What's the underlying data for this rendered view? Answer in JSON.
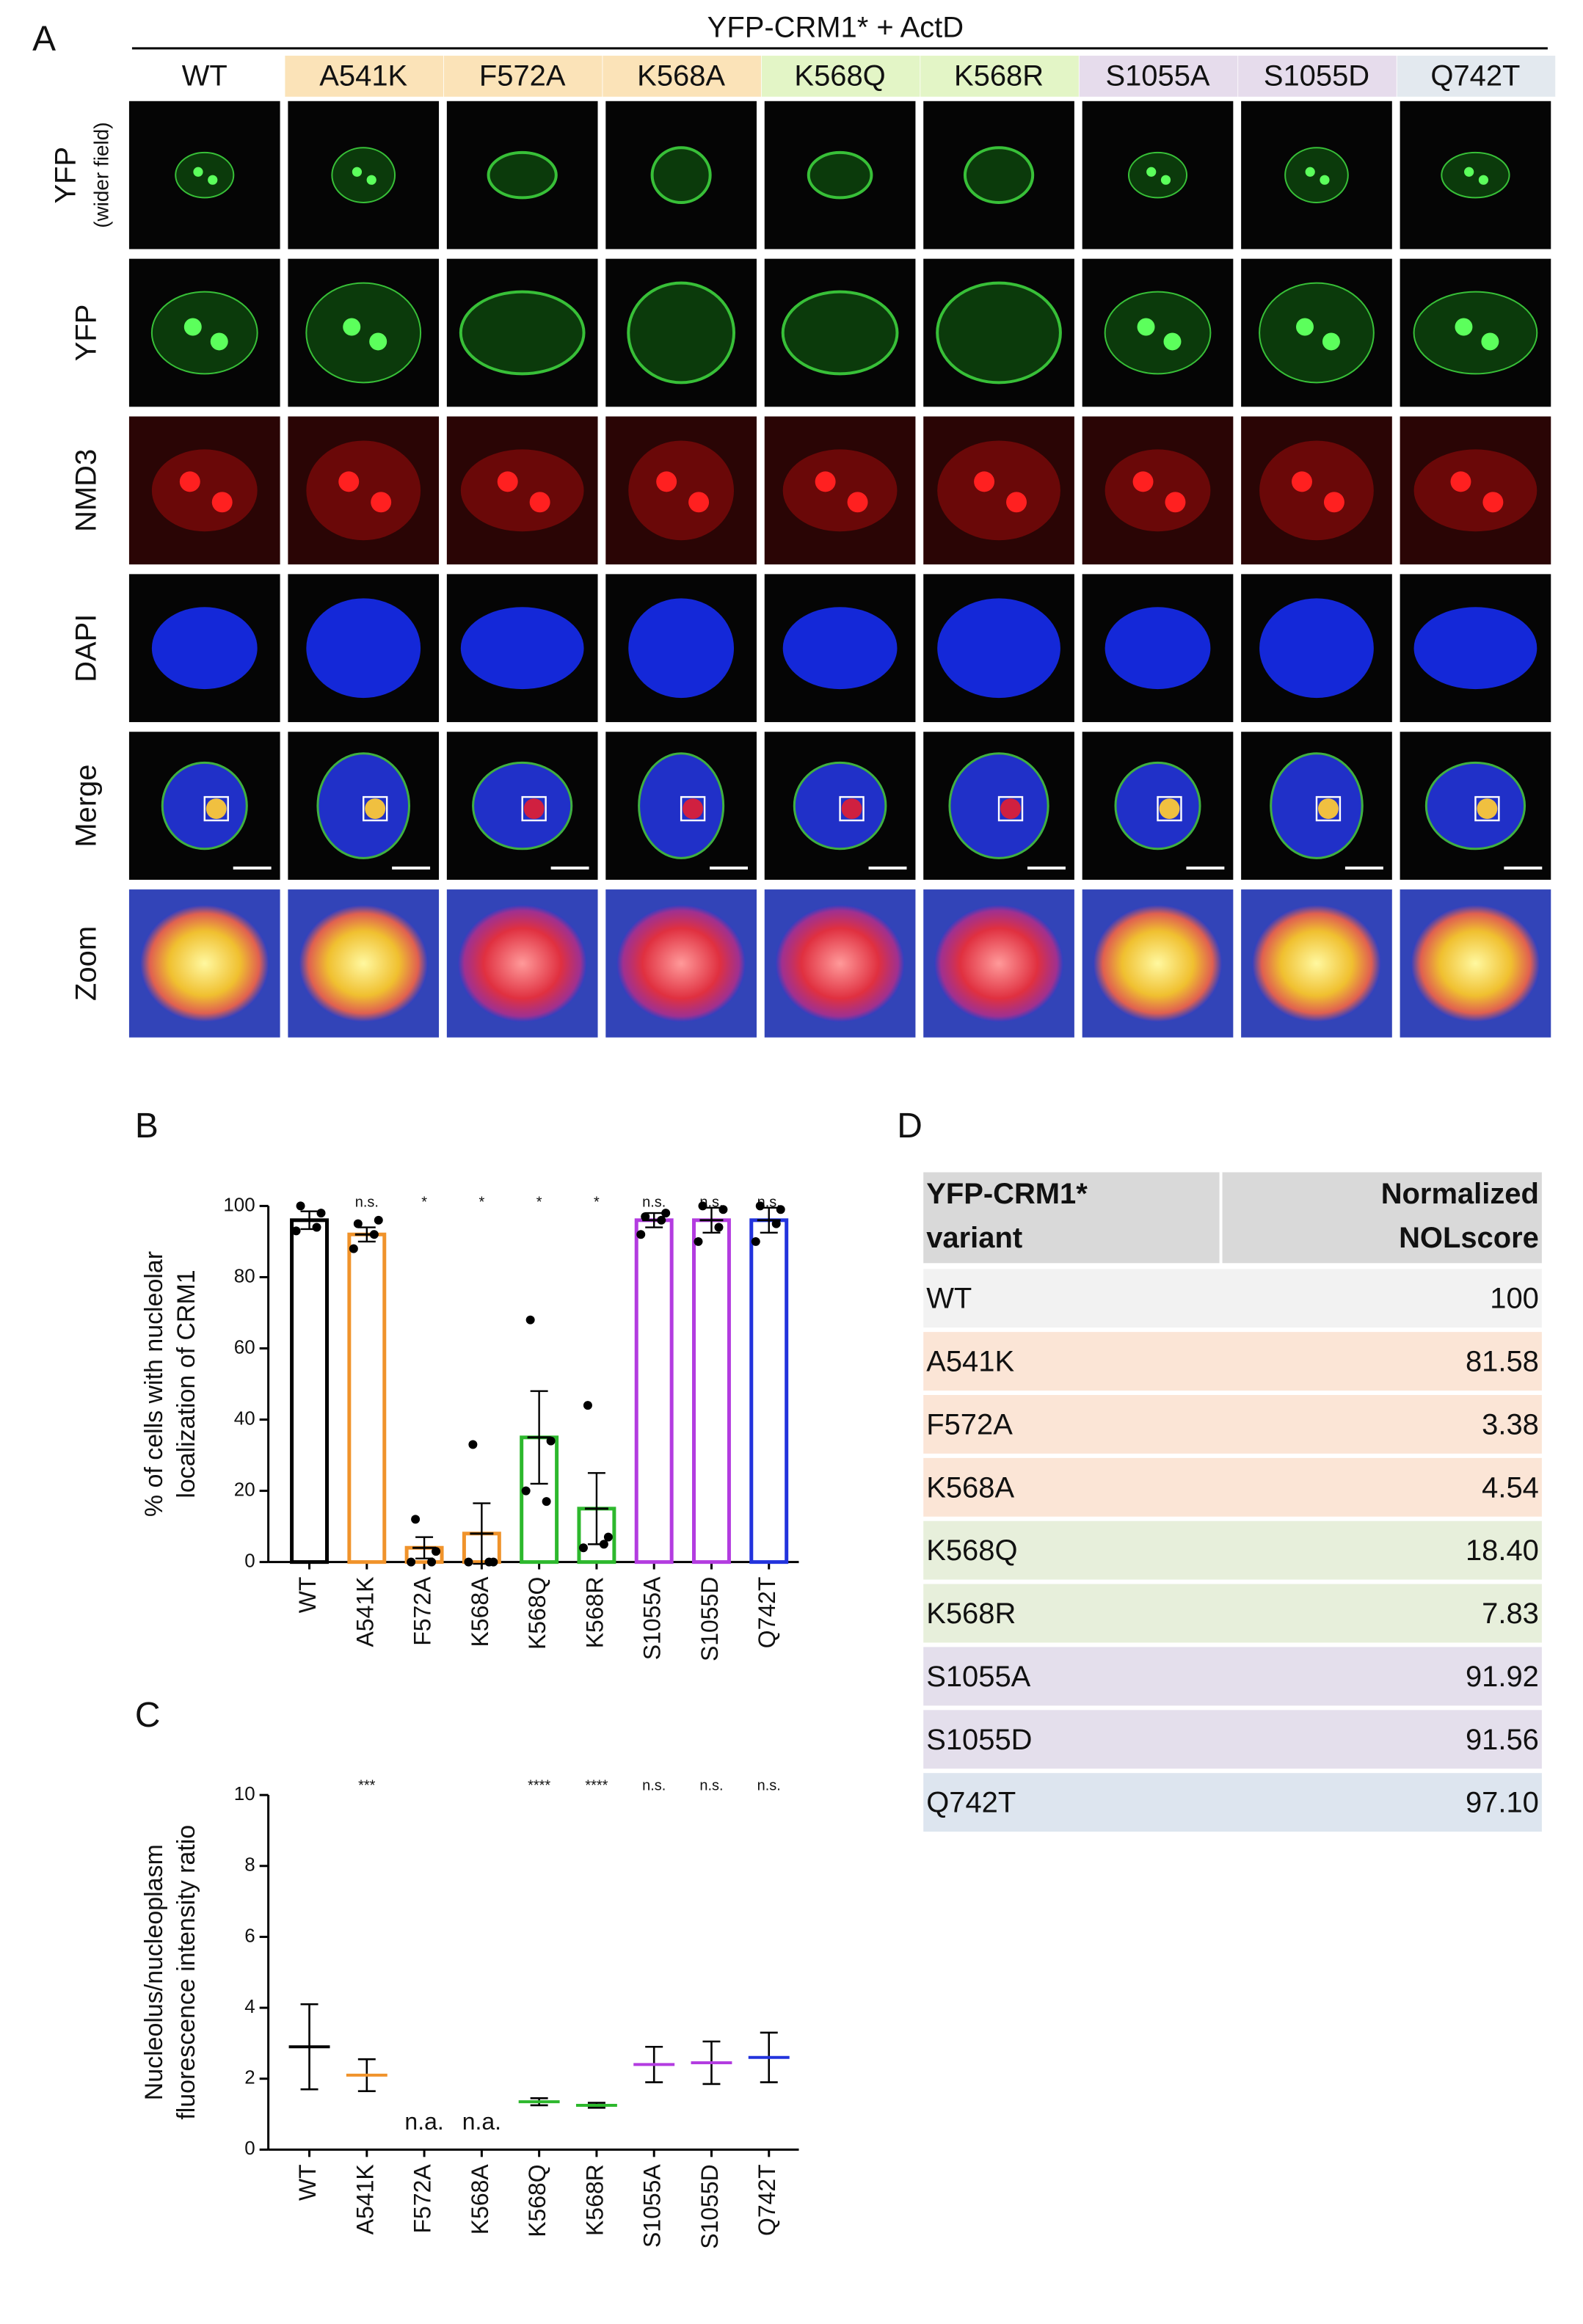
{
  "panel_a": {
    "panel_label": "A",
    "title": "YFP-CRM1* + ActD",
    "columns": [
      {
        "name": "WT",
        "color": "#ffffff"
      },
      {
        "name": "A541K",
        "color": "#fbe3b8"
      },
      {
        "name": "F572A",
        "color": "#fbe3b8"
      },
      {
        "name": "K568A",
        "color": "#fbe3b8"
      },
      {
        "name": "K568Q",
        "color": "#e3f5c6"
      },
      {
        "name": "K568R",
        "color": "#e3f5c6"
      },
      {
        "name": "S1055A",
        "color": "#e6dcec"
      },
      {
        "name": "S1055D",
        "color": "#e6dcec"
      },
      {
        "name": "Q742T",
        "color": "#e3e9ef"
      }
    ],
    "rows": [
      "YFP",
      "YFP",
      "NMD3",
      "DAPI",
      "Merge",
      "Zoom"
    ],
    "row_note": "(wider field)"
  },
  "chart_data": [
    {
      "type": "bar",
      "panel_label": "B",
      "ylabel": [
        "% of cells with nucleolar",
        "localization of CRM1"
      ],
      "categories": [
        "WT",
        "A541K",
        "F572A",
        "K568A",
        "K568Q",
        "K568R",
        "S1055A",
        "S1055D",
        "Q742T"
      ],
      "colors": [
        "#000000",
        "#f0932b",
        "#f0932b",
        "#f0932b",
        "#2db82d",
        "#2db82d",
        "#b33ce0",
        "#b33ce0",
        "#2233dd"
      ],
      "values": [
        96,
        92,
        4,
        8,
        35,
        15,
        96,
        96,
        96
      ],
      "errors": [
        2.5,
        2,
        3,
        8.5,
        13,
        10,
        2,
        3.5,
        3.5
      ],
      "points": [
        [
          100,
          98,
          93,
          94
        ],
        [
          95,
          96,
          88,
          92
        ],
        [
          12,
          3,
          0,
          0
        ],
        [
          33,
          0,
          0,
          0
        ],
        [
          68,
          34,
          20,
          17
        ],
        [
          44,
          7,
          4,
          5
        ],
        [
          97,
          98,
          92,
          96
        ],
        [
          100,
          99,
          90,
          94
        ],
        [
          100,
          99,
          90,
          95
        ]
      ],
      "annotations": [
        null,
        "n.s.",
        "*",
        "*",
        "*",
        "*",
        "n.s.",
        "n.s.",
        "n.s."
      ],
      "ylim": [
        0,
        100
      ],
      "yticks": [
        0,
        20,
        40,
        60,
        80,
        100
      ]
    },
    {
      "type": "dot",
      "panel_label": "C",
      "ylabel": [
        "Nucleolus/nucleoplasm",
        "fluorescence intensity ratio"
      ],
      "categories": [
        "WT",
        "A541K",
        "F572A",
        "K568A",
        "K568Q",
        "K568R",
        "S1055A",
        "S1055D",
        "Q742T"
      ],
      "colors": [
        "#000000",
        "#f0932b",
        "#f0932b",
        "#f0932b",
        "#2db82d",
        "#2db82d",
        "#b33ce0",
        "#b33ce0",
        "#2233dd"
      ],
      "values": [
        2.9,
        2.1,
        null,
        null,
        1.35,
        1.25,
        2.4,
        2.45,
        2.6
      ],
      "errors": [
        1.2,
        0.45,
        null,
        null,
        0.1,
        0.07,
        0.5,
        0.6,
        0.7
      ],
      "value_labels": [
        null,
        null,
        "n.a.",
        "n.a.",
        null,
        null,
        null,
        null,
        null
      ],
      "annotations": [
        null,
        "***",
        null,
        null,
        "****",
        "****",
        "n.s.",
        "n.s.",
        "n.s."
      ],
      "ylim": [
        0,
        10
      ],
      "yticks": [
        0,
        2,
        4,
        6,
        8,
        10
      ]
    }
  ],
  "table": {
    "panel_label": "D",
    "header": [
      [
        "YFP-CRM1*",
        "variant"
      ],
      [
        "Normalized",
        "NOLscore"
      ]
    ],
    "header_color": "#d9d9d9",
    "rows": [
      {
        "cells": [
          "WT",
          "100"
        ],
        "color": "#f2f2f2"
      },
      {
        "cells": [
          "A541K",
          "81.58"
        ],
        "color": "#fbe5d6"
      },
      {
        "cells": [
          "F572A",
          "3.38"
        ],
        "color": "#fbe5d6"
      },
      {
        "cells": [
          "K568A",
          "4.54"
        ],
        "color": "#fbe5d6"
      },
      {
        "cells": [
          "K568Q",
          "18.40"
        ],
        "color": "#e7efdb"
      },
      {
        "cells": [
          "K568R",
          "7.83"
        ],
        "color": "#e7efdb"
      },
      {
        "cells": [
          "S1055A",
          "91.92"
        ],
        "color": "#e4dfec"
      },
      {
        "cells": [
          "S1055D",
          "91.56"
        ],
        "color": "#e4dfec"
      },
      {
        "cells": [
          "Q742T",
          "97.10"
        ],
        "color": "#dde5ef"
      }
    ]
  }
}
